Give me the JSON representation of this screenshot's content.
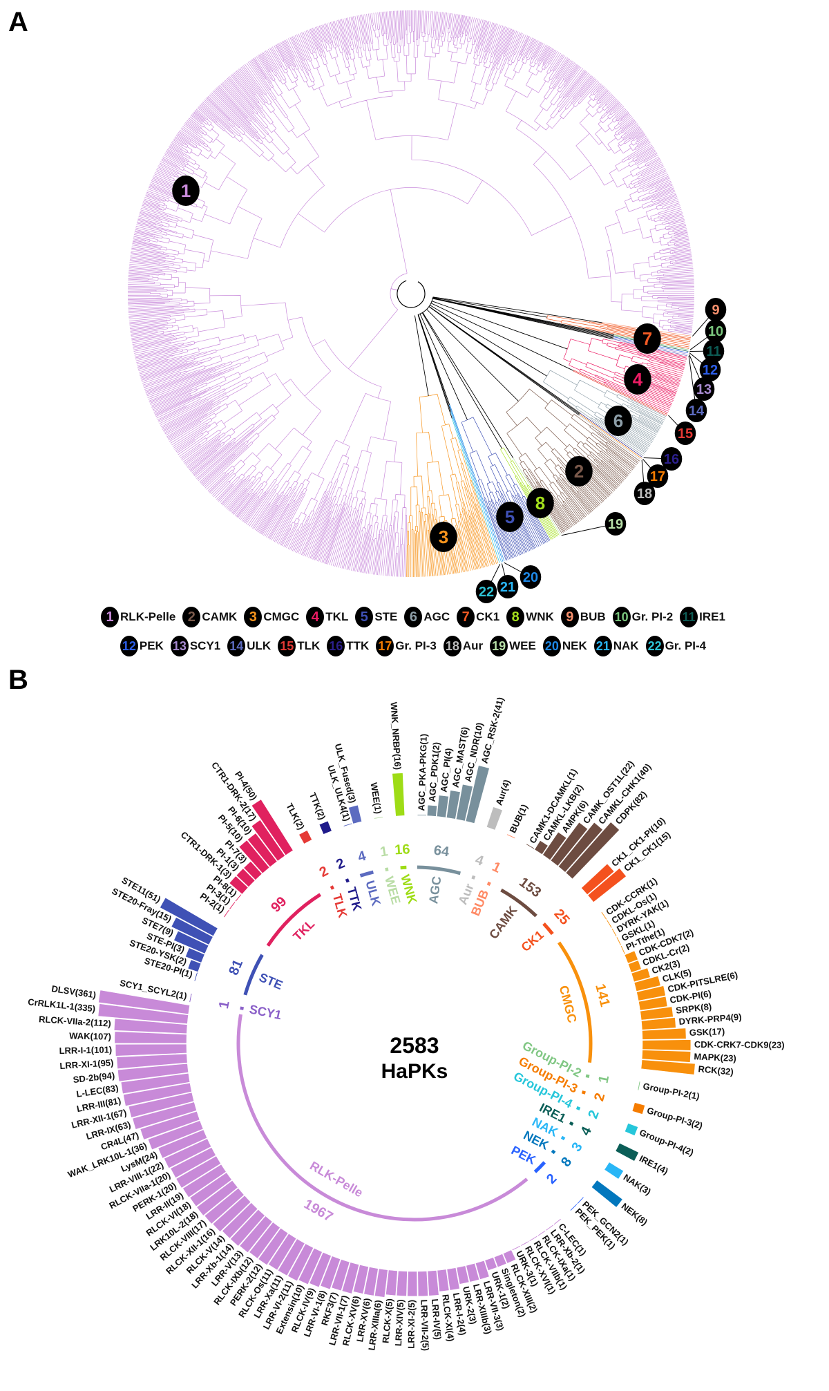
{
  "panel_a": {
    "label": "A",
    "legend": [
      {
        "num": "1",
        "name": "RLK-Pelle",
        "color": "#c98bdb"
      },
      {
        "num": "2",
        "name": "CAMK",
        "color": "#7b5a4c"
      },
      {
        "num": "3",
        "name": "CMGC",
        "color": "#f7941d"
      },
      {
        "num": "4",
        "name": "TKL",
        "color": "#ec1c64"
      },
      {
        "num": "5",
        "name": "STE",
        "color": "#3f51b5"
      },
      {
        "num": "6",
        "name": "AGC",
        "color": "#8d9ea8"
      },
      {
        "num": "7",
        "name": "CK1",
        "color": "#f15a24"
      },
      {
        "num": "8",
        "name": "WNK",
        "color": "#a4e01c"
      },
      {
        "num": "9",
        "name": "BUB",
        "color": "#f7906d"
      },
      {
        "num": "10",
        "name": "Gr. PI-2",
        "color": "#7bc67e"
      },
      {
        "num": "11",
        "name": "IRE1",
        "color": "#0d5c55"
      },
      {
        "num": "12",
        "name": "PEK",
        "color": "#2d5ee8"
      },
      {
        "num": "13",
        "name": "SCY1",
        "color": "#a78ad0"
      },
      {
        "num": "14",
        "name": "ULK",
        "color": "#5c6bc0"
      },
      {
        "num": "15",
        "name": "TLK",
        "color": "#e53935"
      },
      {
        "num": "16",
        "name": "TTK",
        "color": "#2b1f8c"
      },
      {
        "num": "17",
        "name": "Gr. PI-3",
        "color": "#f57c00"
      },
      {
        "num": "18",
        "name": "Aur",
        "color": "#bdbdbd"
      },
      {
        "num": "19",
        "name": "WEE",
        "color": "#b8e0a8"
      },
      {
        "num": "20",
        "name": "NEK",
        "color": "#1e88e5"
      },
      {
        "num": "21",
        "name": "NAK",
        "color": "#29b6f6"
      },
      {
        "num": "22",
        "name": "Gr. PI-4",
        "color": "#2ec4d6"
      }
    ]
  },
  "panel_b": {
    "label": "B",
    "total": "2583",
    "total_label": "HaPKs"
  },
  "chart_data": {
    "type": "circular-bar",
    "value_scale": "log",
    "center_text": [
      "2583",
      "HaPKs"
    ],
    "families": [
      {
        "name": "SCY1",
        "total": 1,
        "color": "#8a5fc8",
        "subfamilies": [
          {
            "name": "SCY1_SCYL2",
            "value": 1
          }
        ]
      },
      {
        "name": "STE",
        "total": 81,
        "color": "#3f51b5",
        "subfamilies": [
          {
            "name": "STE20-PI",
            "value": 1
          },
          {
            "name": "STE20-YSK",
            "value": 2
          },
          {
            "name": "STE-PI",
            "value": 3
          },
          {
            "name": "STE7",
            "value": 9
          },
          {
            "name": "STE20-Fray",
            "value": 15
          },
          {
            "name": "STE11",
            "value": 51
          }
        ]
      },
      {
        "name": "TKL",
        "total": 99,
        "color": "#e0215f",
        "subfamilies": [
          {
            "name": "PI-2",
            "value": 1
          },
          {
            "name": "PI-3",
            "value": 1
          },
          {
            "name": "PI-8",
            "value": 1
          },
          {
            "name": "CTR1-DRK-1",
            "value": 3
          },
          {
            "name": "PI-1",
            "value": 3
          },
          {
            "name": "PI-7",
            "value": 3
          },
          {
            "name": "PI-5",
            "value": 10
          },
          {
            "name": "PI-6",
            "value": 10
          },
          {
            "name": "CTR1-DRK-2",
            "value": 17
          },
          {
            "name": "PI-4",
            "value": 50
          }
        ]
      },
      {
        "name": "TLK",
        "total": 2,
        "color": "#e53935",
        "subfamilies": [
          {
            "name": "TLK",
            "value": 2
          }
        ]
      },
      {
        "name": "TTK",
        "total": 2,
        "color": "#1f1a8a",
        "subfamilies": [
          {
            "name": "TTK",
            "value": 2
          }
        ]
      },
      {
        "name": "ULK",
        "total": 4,
        "color": "#5c6bc0",
        "subfamilies": [
          {
            "name": "ULK_ULK4",
            "value": 1
          },
          {
            "name": "ULK_Fused",
            "value": 3
          }
        ]
      },
      {
        "name": "WEE",
        "total": 1,
        "color": "#b8dca4",
        "subfamilies": [
          {
            "name": "WEE",
            "value": 1
          }
        ]
      },
      {
        "name": "WNK",
        "total": 16,
        "color": "#9edc16",
        "subfamilies": [
          {
            "name": "WNK_NRBP",
            "value": 16
          }
        ]
      },
      {
        "name": "AGC",
        "total": 64,
        "color": "#78909c",
        "subfamilies": [
          {
            "name": "AGC_PKA-PKG",
            "value": 1
          },
          {
            "name": "AGC_PDK1",
            "value": 2
          },
          {
            "name": "AGC_PI",
            "value": 4
          },
          {
            "name": "AGC_MAST",
            "value": 6
          },
          {
            "name": "AGC_NDR",
            "value": 10
          },
          {
            "name": "AGC_RSK-2",
            "value": 41
          }
        ]
      },
      {
        "name": "Aur",
        "total": 4,
        "color": "#bdbdbd",
        "subfamilies": [
          {
            "name": "Aur",
            "value": 4
          }
        ]
      },
      {
        "name": "BUB",
        "total": 1,
        "color": "#ff8a65",
        "subfamilies": [
          {
            "name": "BUB",
            "value": 1
          }
        ]
      },
      {
        "name": "CAMK",
        "total": 153,
        "color": "#6d4c41",
        "subfamilies": [
          {
            "name": "CAMK1-DCAMKL",
            "value": 1
          },
          {
            "name": "CAMKL-LKB",
            "value": 2
          },
          {
            "name": "AMPK",
            "value": 6
          },
          {
            "name": "CAMK_OST1L",
            "value": 22
          },
          {
            "name": "CAMKL-CHK1",
            "value": 40
          },
          {
            "name": "CDPK",
            "value": 82
          }
        ]
      },
      {
        "name": "CK1",
        "total": 25,
        "color": "#f4511e",
        "subfamilies": [
          {
            "name": "CK1_CK1-PI",
            "value": 10
          },
          {
            "name": "CK1_CK1",
            "value": 15
          }
        ]
      },
      {
        "name": "CMGC",
        "total": 141,
        "color": "#f8900c",
        "subfamilies": [
          {
            "name": "CDK-CCRK",
            "value": 1
          },
          {
            "name": "CDKL-Os",
            "value": 1
          },
          {
            "name": "DYRK-YAK",
            "value": 1
          },
          {
            "name": "GSKL",
            "value": 1
          },
          {
            "name": "PI-Tthe",
            "value": 1
          },
          {
            "name": "CDK-CDK7",
            "value": 2
          },
          {
            "name": "CDKL-Cr",
            "value": 2
          },
          {
            "name": "CK2",
            "value": 3
          },
          {
            "name": "CLK",
            "value": 5
          },
          {
            "name": "CDK-PITSLRE",
            "value": 6
          },
          {
            "name": "CDK-PI",
            "value": 6
          },
          {
            "name": "SRPK",
            "value": 8
          },
          {
            "name": "DYRK-PRP4",
            "value": 9
          },
          {
            "name": "GSK",
            "value": 17
          },
          {
            "name": "CDK-CRK7-CDK9",
            "value": 23
          },
          {
            "name": "MAPK",
            "value": 23
          },
          {
            "name": "RCK",
            "value": 32
          }
        ]
      },
      {
        "name": "Group-PI-2",
        "total": 1,
        "color": "#81c784",
        "subfamilies": [
          {
            "name": "Group-PI-2",
            "value": 1
          }
        ]
      },
      {
        "name": "Group-PI-3",
        "total": 2,
        "color": "#f57c00",
        "subfamilies": [
          {
            "name": "Group-PI-3",
            "value": 2
          }
        ]
      },
      {
        "name": "Group-PI-4",
        "total": 2,
        "color": "#26c6da",
        "subfamilies": [
          {
            "name": "Group-PI-4",
            "value": 2
          }
        ]
      },
      {
        "name": "IRE1",
        "total": 4,
        "color": "#0b5e57",
        "subfamilies": [
          {
            "name": "IRE1",
            "value": 4
          }
        ]
      },
      {
        "name": "NAK",
        "total": 3,
        "color": "#29b6f6",
        "subfamilies": [
          {
            "name": "NAK",
            "value": 3
          }
        ]
      },
      {
        "name": "NEK",
        "total": 8,
        "color": "#0277bd",
        "subfamilies": [
          {
            "name": "NEK",
            "value": 8
          }
        ]
      },
      {
        "name": "PEK",
        "total": 2,
        "color": "#2962ff",
        "subfamilies": [
          {
            "name": "PEK_GCN2",
            "value": 1
          },
          {
            "name": "PEK_PEK",
            "value": 1
          }
        ]
      },
      {
        "name": "RLK-Pelle",
        "total": 1967,
        "color": "#c88ad8",
        "subfamilies": [
          {
            "name": "C-LEC",
            "value": 1
          },
          {
            "name": "LRR-Xb-2",
            "value": 1
          },
          {
            "name": "RLCK-IXa",
            "value": 1
          },
          {
            "name": "RLCK-VIIb",
            "value": 1
          },
          {
            "name": "RLCK-XVI",
            "value": 1
          },
          {
            "name": "URK-3",
            "value": 1
          },
          {
            "name": "RLCK-XIII",
            "value": 2
          },
          {
            "name": "Singleton",
            "value": 2
          },
          {
            "name": "URK-1",
            "value": 2
          },
          {
            "name": "LRR-VII-3",
            "value": 3
          },
          {
            "name": "LRR-XIIIb",
            "value": 3
          },
          {
            "name": "URK-2",
            "value": 3
          },
          {
            "name": "LRR-I-2",
            "value": 4
          },
          {
            "name": "RLCK-XI",
            "value": 4
          },
          {
            "name": "LRR-IV",
            "value": 5
          },
          {
            "name": "LRR-VII-2",
            "value": 5
          },
          {
            "name": "LRR-XI-2",
            "value": 5
          },
          {
            "name": "LRR-XIV",
            "value": 5
          },
          {
            "name": "RLCK-X",
            "value": 5
          },
          {
            "name": "LRR-XIIIa",
            "value": 6
          },
          {
            "name": "LRR-XV",
            "value": 6
          },
          {
            "name": "RLCK-XV",
            "value": 6
          },
          {
            "name": "LRR-VII-1",
            "value": 7
          },
          {
            "name": "RKF3",
            "value": 7
          },
          {
            "name": "LRR-VI-1",
            "value": 8
          },
          {
            "name": "RLCK-IV",
            "value": 9
          },
          {
            "name": "Extensin",
            "value": 10
          },
          {
            "name": "LRR-VI-2",
            "value": 11
          },
          {
            "name": "LRR-Xa",
            "value": 11
          },
          {
            "name": "RLCK-Os",
            "value": 11
          },
          {
            "name": "PERK-2",
            "value": 12
          },
          {
            "name": "RLCK-IXb",
            "value": 12
          },
          {
            "name": "LRR-V",
            "value": 13
          },
          {
            "name": "LRR-Xb-1",
            "value": 14
          },
          {
            "name": "RLCK-V",
            "value": 14
          },
          {
            "name": "RLCK-XII-1",
            "value": 16
          },
          {
            "name": "RLCK-VIII",
            "value": 17
          },
          {
            "name": "LRK10L-2",
            "value": 18
          },
          {
            "name": "RLCK-VI",
            "value": 18
          },
          {
            "name": "LRR-II",
            "value": 19
          },
          {
            "name": "PERK-1",
            "value": 20
          },
          {
            "name": "RLCK-VIIa-1",
            "value": 20
          },
          {
            "name": "LRR-VIII-1",
            "value": 22
          },
          {
            "name": "LysM",
            "value": 24
          },
          {
            "name": "WAK_LRK10L-1",
            "value": 36
          },
          {
            "name": "CR4L",
            "value": 47
          },
          {
            "name": "LRR-IX",
            "value": 63
          },
          {
            "name": "LRR-XII-1",
            "value": 67
          },
          {
            "name": "LRR-III",
            "value": 81
          },
          {
            "name": "L-LEC",
            "value": 83
          },
          {
            "name": "SD-2b",
            "value": 94
          },
          {
            "name": "LRR-XI-1",
            "value": 95
          },
          {
            "name": "LRR-I-1",
            "value": 101
          },
          {
            "name": "WAK",
            "value": 107
          },
          {
            "name": "RLCK-VIIa-2",
            "value": 112
          },
          {
            "name": "CrRLK1L-1",
            "value": 335
          },
          {
            "name": "DLSV",
            "value": 361
          }
        ]
      }
    ]
  }
}
